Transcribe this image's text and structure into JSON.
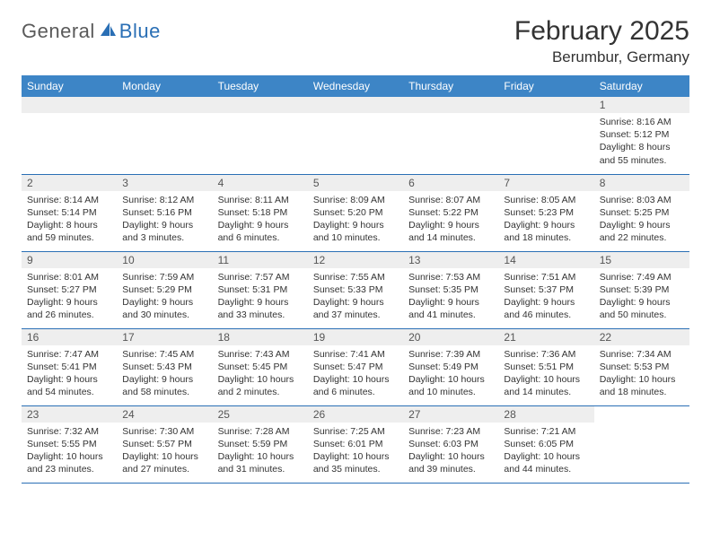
{
  "brand": {
    "general": "General",
    "blue": "Blue"
  },
  "title": "February 2025",
  "location": "Berumbur, Germany",
  "colors": {
    "header_bg": "#3d85c6",
    "header_text": "#ffffff",
    "border": "#2a6fb5",
    "daynum_bg": "#eeeeee",
    "text": "#333333"
  },
  "day_headers": [
    "Sunday",
    "Monday",
    "Tuesday",
    "Wednesday",
    "Thursday",
    "Friday",
    "Saturday"
  ],
  "weeks": [
    [
      null,
      null,
      null,
      null,
      null,
      null,
      {
        "n": "1",
        "sunrise": "8:16 AM",
        "sunset": "5:12 PM",
        "daylight": "8 hours and 55 minutes."
      }
    ],
    [
      {
        "n": "2",
        "sunrise": "8:14 AM",
        "sunset": "5:14 PM",
        "daylight": "8 hours and 59 minutes."
      },
      {
        "n": "3",
        "sunrise": "8:12 AM",
        "sunset": "5:16 PM",
        "daylight": "9 hours and 3 minutes."
      },
      {
        "n": "4",
        "sunrise": "8:11 AM",
        "sunset": "5:18 PM",
        "daylight": "9 hours and 6 minutes."
      },
      {
        "n": "5",
        "sunrise": "8:09 AM",
        "sunset": "5:20 PM",
        "daylight": "9 hours and 10 minutes."
      },
      {
        "n": "6",
        "sunrise": "8:07 AM",
        "sunset": "5:22 PM",
        "daylight": "9 hours and 14 minutes."
      },
      {
        "n": "7",
        "sunrise": "8:05 AM",
        "sunset": "5:23 PM",
        "daylight": "9 hours and 18 minutes."
      },
      {
        "n": "8",
        "sunrise": "8:03 AM",
        "sunset": "5:25 PM",
        "daylight": "9 hours and 22 minutes."
      }
    ],
    [
      {
        "n": "9",
        "sunrise": "8:01 AM",
        "sunset": "5:27 PM",
        "daylight": "9 hours and 26 minutes."
      },
      {
        "n": "10",
        "sunrise": "7:59 AM",
        "sunset": "5:29 PM",
        "daylight": "9 hours and 30 minutes."
      },
      {
        "n": "11",
        "sunrise": "7:57 AM",
        "sunset": "5:31 PM",
        "daylight": "9 hours and 33 minutes."
      },
      {
        "n": "12",
        "sunrise": "7:55 AM",
        "sunset": "5:33 PM",
        "daylight": "9 hours and 37 minutes."
      },
      {
        "n": "13",
        "sunrise": "7:53 AM",
        "sunset": "5:35 PM",
        "daylight": "9 hours and 41 minutes."
      },
      {
        "n": "14",
        "sunrise": "7:51 AM",
        "sunset": "5:37 PM",
        "daylight": "9 hours and 46 minutes."
      },
      {
        "n": "15",
        "sunrise": "7:49 AM",
        "sunset": "5:39 PM",
        "daylight": "9 hours and 50 minutes."
      }
    ],
    [
      {
        "n": "16",
        "sunrise": "7:47 AM",
        "sunset": "5:41 PM",
        "daylight": "9 hours and 54 minutes."
      },
      {
        "n": "17",
        "sunrise": "7:45 AM",
        "sunset": "5:43 PM",
        "daylight": "9 hours and 58 minutes."
      },
      {
        "n": "18",
        "sunrise": "7:43 AM",
        "sunset": "5:45 PM",
        "daylight": "10 hours and 2 minutes."
      },
      {
        "n": "19",
        "sunrise": "7:41 AM",
        "sunset": "5:47 PM",
        "daylight": "10 hours and 6 minutes."
      },
      {
        "n": "20",
        "sunrise": "7:39 AM",
        "sunset": "5:49 PM",
        "daylight": "10 hours and 10 minutes."
      },
      {
        "n": "21",
        "sunrise": "7:36 AM",
        "sunset": "5:51 PM",
        "daylight": "10 hours and 14 minutes."
      },
      {
        "n": "22",
        "sunrise": "7:34 AM",
        "sunset": "5:53 PM",
        "daylight": "10 hours and 18 minutes."
      }
    ],
    [
      {
        "n": "23",
        "sunrise": "7:32 AM",
        "sunset": "5:55 PM",
        "daylight": "10 hours and 23 minutes."
      },
      {
        "n": "24",
        "sunrise": "7:30 AM",
        "sunset": "5:57 PM",
        "daylight": "10 hours and 27 minutes."
      },
      {
        "n": "25",
        "sunrise": "7:28 AM",
        "sunset": "5:59 PM",
        "daylight": "10 hours and 31 minutes."
      },
      {
        "n": "26",
        "sunrise": "7:25 AM",
        "sunset": "6:01 PM",
        "daylight": "10 hours and 35 minutes."
      },
      {
        "n": "27",
        "sunrise": "7:23 AM",
        "sunset": "6:03 PM",
        "daylight": "10 hours and 39 minutes."
      },
      {
        "n": "28",
        "sunrise": "7:21 AM",
        "sunset": "6:05 PM",
        "daylight": "10 hours and 44 minutes."
      },
      null
    ]
  ],
  "labels": {
    "sunrise": "Sunrise: ",
    "sunset": "Sunset: ",
    "daylight": "Daylight: "
  }
}
